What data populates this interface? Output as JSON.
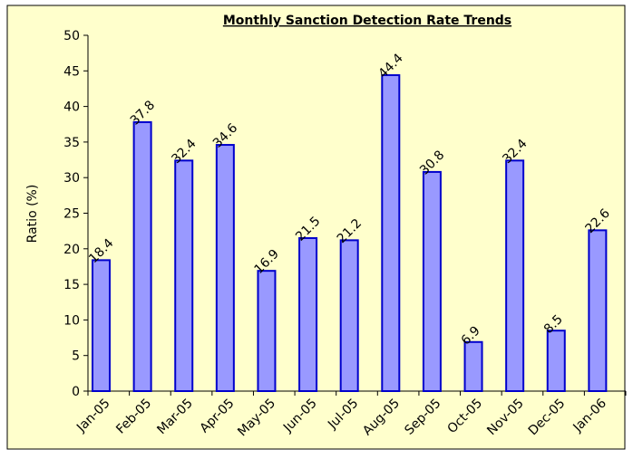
{
  "chart_data": {
    "type": "bar",
    "title": "Monthly Sanction Detection Rate Trends",
    "y_label": "Ratio (%)",
    "categories": [
      "Jan-05",
      "Feb-05",
      "Mar-05",
      "Apr-05",
      "May-05",
      "Jun-05",
      "Jul-05",
      "Aug-05",
      "Sep-05",
      "Oct-05",
      "Nov-05",
      "Dec-05",
      "Jan-06"
    ],
    "values": [
      18.4,
      37.8,
      32.4,
      34.6,
      16.9,
      21.5,
      21.2,
      44.4,
      30.8,
      6.9,
      32.4,
      8.5,
      22.6
    ],
    "color": "#9999ff",
    "edge_color": "#0000cc",
    "ylim": [
      0,
      50
    ],
    "yticks": [
      0,
      5,
      10,
      15,
      20,
      25,
      30,
      35,
      40,
      45,
      50
    ],
    "grid": false
  }
}
